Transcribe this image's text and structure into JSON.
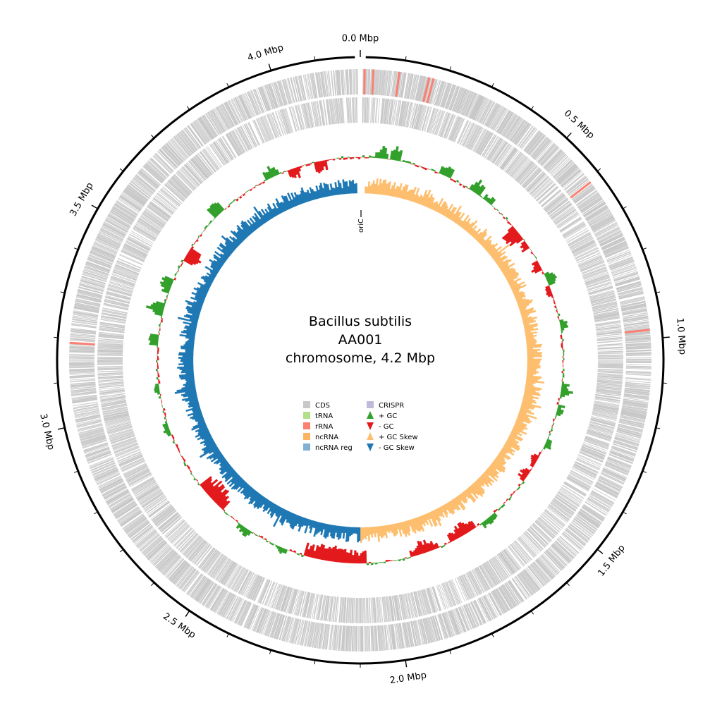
{
  "title": {
    "organism": "Bacillus subtilis",
    "strain": "AA001",
    "description": "chromosome, 4.2 Mbp"
  },
  "genome": {
    "length_mbp": 4.2,
    "ori_label": "oriC"
  },
  "ticks": [
    {
      "value": 0.0,
      "label": "0.0 Mbp"
    },
    {
      "value": 0.5,
      "label": "0.5 Mbp"
    },
    {
      "value": 1.0,
      "label": "1.0 Mbp"
    },
    {
      "value": 1.5,
      "label": "1.5 Mbp"
    },
    {
      "value": 2.0,
      "label": "2.0 Mbp"
    },
    {
      "value": 2.5,
      "label": "2.5 Mbp"
    },
    {
      "value": 3.0,
      "label": "3.0 Mbp"
    },
    {
      "value": 3.5,
      "label": "3.5 Mbp"
    },
    {
      "value": 4.0,
      "label": "4.0 Mbp"
    }
  ],
  "colors": {
    "cds": "#c8c8c8",
    "trna": "#b2df8a",
    "rrna": "#fb8072",
    "ncrna": "#fdb462",
    "ncrna_reg": "#80b1d3",
    "crispr": "#bebada",
    "gc_plus": "#33a02c",
    "gc_minus": "#e31a1c",
    "skew_plus": "#fdbf6f",
    "skew_minus": "#1f78b4"
  },
  "legend": [
    {
      "label": "CDS",
      "color": "#c8c8c8",
      "shape": "square"
    },
    {
      "label": "tRNA",
      "color": "#b2df8a",
      "shape": "square"
    },
    {
      "label": "rRNA",
      "color": "#fb8072",
      "shape": "square"
    },
    {
      "label": "ncRNA",
      "color": "#fdb462",
      "shape": "square"
    },
    {
      "label": "ncRNA reg",
      "color": "#80b1d3",
      "shape": "square"
    },
    {
      "label": "CRISPR",
      "color": "#bebada",
      "shape": "square"
    },
    {
      "label": "+ GC",
      "color": "#33a02c",
      "shape": "up"
    },
    {
      "label": "- GC",
      "color": "#e31a1c",
      "shape": "down"
    },
    {
      "label": "+ GC Skew",
      "color": "#fdbf6f",
      "shape": "up"
    },
    {
      "label": "- GC Skew",
      "color": "#1f78b4",
      "shape": "down"
    }
  ],
  "rrna_positions_mbp": [
    0.01,
    0.03,
    0.09,
    0.16,
    0.17,
    0.61,
    0.98,
    3.19
  ],
  "gc_content_regions": [
    {
      "start": 0.05,
      "end": 0.08,
      "value": 0.6
    },
    {
      "start": 0.1,
      "end": 0.12,
      "value": 0.8
    },
    {
      "start": 0.27,
      "end": 0.3,
      "value": 0.6
    },
    {
      "start": 0.38,
      "end": 0.41,
      "value": 0.7
    },
    {
      "start": 0.44,
      "end": 0.46,
      "value": 0.4
    },
    {
      "start": 0.57,
      "end": 0.61,
      "value": -0.9
    },
    {
      "start": 0.63,
      "end": 0.65,
      "value": -0.5
    },
    {
      "start": 0.71,
      "end": 0.73,
      "value": -0.5
    },
    {
      "start": 0.76,
      "end": 0.79,
      "value": 0.7
    },
    {
      "start": 0.8,
      "end": 0.82,
      "value": -0.3
    },
    {
      "start": 0.92,
      "end": 0.94,
      "value": 0.5
    },
    {
      "start": 1.13,
      "end": 1.16,
      "value": 0.6
    },
    {
      "start": 1.2,
      "end": 1.22,
      "value": 0.4
    },
    {
      "start": 1.32,
      "end": 1.34,
      "value": 0.4
    },
    {
      "start": 1.38,
      "end": 1.41,
      "value": -0.4
    },
    {
      "start": 1.44,
      "end": 1.47,
      "value": -0.5
    },
    {
      "start": 1.62,
      "end": 1.66,
      "value": 0.4
    },
    {
      "start": 1.7,
      "end": 1.78,
      "value": -0.7
    },
    {
      "start": 1.84,
      "end": 1.92,
      "value": -0.6
    },
    {
      "start": 2.08,
      "end": 2.28,
      "value": -0.9
    },
    {
      "start": 2.35,
      "end": 2.38,
      "value": 0.3
    },
    {
      "start": 2.48,
      "end": 2.52,
      "value": 0.4
    },
    {
      "start": 2.6,
      "end": 2.7,
      "value": -1.0
    },
    {
      "start": 2.9,
      "end": 2.93,
      "value": 0.4
    },
    {
      "start": 3.04,
      "end": 3.06,
      "value": 0.4
    },
    {
      "start": 3.2,
      "end": 3.22,
      "value": 0.6
    },
    {
      "start": 3.3,
      "end": 3.33,
      "value": 0.8
    },
    {
      "start": 3.38,
      "end": 3.41,
      "value": 0.6
    },
    {
      "start": 3.5,
      "end": 3.53,
      "value": -0.9
    },
    {
      "start": 3.67,
      "end": 3.7,
      "value": 0.7
    },
    {
      "start": 3.88,
      "end": 3.92,
      "value": 0.5
    },
    {
      "start": 3.96,
      "end": 3.99,
      "value": -0.6
    },
    {
      "start": 4.05,
      "end": 4.08,
      "value": -0.6
    }
  ],
  "gc_skew_summary": {
    "positive_range_mbp": [
      0.0,
      2.1
    ],
    "negative_range_mbp": [
      2.1,
      4.2
    ]
  }
}
